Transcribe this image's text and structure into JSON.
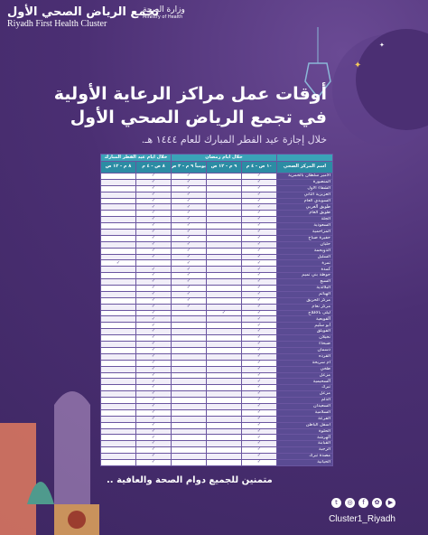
{
  "header": {
    "brand_ar": "تجمع الرياض الصحي الأول",
    "brand_en": "Riyadh First Health Cluster",
    "ministry_ar": "وزارة الصحة",
    "ministry_en": "Ministry of Health"
  },
  "title": {
    "line1": "أوقات عمل مراكز الرعاية الأولية",
    "line2": "في تجمع الرياض الصحي الأول",
    "subtitle": "خلال إجازة عيد الفطر المبارك للعام ١٤٤٤ هـ."
  },
  "table": {
    "group_ramadan": "خلال أيام رمضان",
    "group_eid": "خلال أيام عيد الفطر المبارك",
    "col_name": "اسم المركز الصحي",
    "col1": "١٠ ص - ٤ م",
    "col2": "٩ م - ١٢ ص",
    "col3": "يومياً ٩ م - ٣ ص",
    "col4": "٨ ص - ٤ م",
    "col5": "٨ م - ١٢ ص",
    "check": "✓",
    "rows": [
      {
        "name": "الأمير سلطان بالخمرية",
        "m": [
          1,
          0,
          1,
          1,
          0
        ]
      },
      {
        "name": "المنصورة",
        "m": [
          1,
          0,
          1,
          1,
          0
        ]
      },
      {
        "name": "الشفاء الأول",
        "m": [
          1,
          0,
          1,
          1,
          0
        ]
      },
      {
        "name": "العزيزية الثاني",
        "m": [
          1,
          0,
          1,
          1,
          0
        ]
      },
      {
        "name": "السويدي العام",
        "m": [
          1,
          0,
          1,
          1,
          0
        ]
      },
      {
        "name": "طويق الغربي",
        "m": [
          1,
          0,
          1,
          1,
          0
        ]
      },
      {
        "name": "طويق العام",
        "m": [
          1,
          0,
          1,
          1,
          0
        ]
      },
      {
        "name": "الجلة",
        "m": [
          1,
          0,
          1,
          1,
          0
        ]
      },
      {
        "name": "السعودية",
        "m": [
          1,
          0,
          1,
          1,
          0
        ]
      },
      {
        "name": "المزاحمية",
        "m": [
          1,
          0,
          1,
          1,
          0
        ]
      },
      {
        "name": "حفيرة صباح",
        "m": [
          1,
          0,
          1,
          1,
          0
        ]
      },
      {
        "name": "حليان",
        "m": [
          1,
          0,
          1,
          1,
          0
        ]
      },
      {
        "name": "الدويحمة",
        "m": [
          1,
          0,
          1,
          1,
          0
        ]
      },
      {
        "name": "السليل",
        "m": [
          1,
          0,
          1,
          1,
          0
        ]
      },
      {
        "name": "تمرة",
        "m": [
          1,
          0,
          1,
          0,
          1
        ]
      },
      {
        "name": "كمدة",
        "m": [
          1,
          0,
          1,
          1,
          0
        ]
      },
      {
        "name": "حوطة بني تميم",
        "m": [
          1,
          0,
          1,
          1,
          0
        ]
      },
      {
        "name": "السبع",
        "m": [
          1,
          0,
          1,
          1,
          0
        ]
      },
      {
        "name": "البلالدية",
        "m": [
          1,
          0,
          1,
          1,
          0
        ]
      },
      {
        "name": "الهياثم",
        "m": [
          1,
          0,
          1,
          1,
          0
        ]
      },
      {
        "name": "مركز الحريق",
        "m": [
          1,
          0,
          1,
          1,
          0
        ]
      },
      {
        "name": "مركز نعام",
        "m": [
          1,
          0,
          1,
          1,
          0
        ]
      },
      {
        "name": "ليلى بالأفلاج",
        "m": [
          1,
          1,
          0,
          1,
          0
        ]
      },
      {
        "name": "القويعية",
        "m": [
          1,
          0,
          0,
          1,
          0
        ]
      },
      {
        "name": "أبو سليم",
        "m": [
          1,
          0,
          0,
          1,
          0
        ]
      },
      {
        "name": "الفويلق",
        "m": [
          1,
          0,
          0,
          1,
          0
        ]
      },
      {
        "name": "نخيلان",
        "m": [
          1,
          0,
          0,
          1,
          0
        ]
      },
      {
        "name": "ضبحاء",
        "m": [
          1,
          0,
          0,
          1,
          0
        ]
      },
      {
        "name": "دسمان",
        "m": [
          1,
          0,
          0,
          1,
          0
        ]
      },
      {
        "name": "القرده",
        "m": [
          1,
          0,
          0,
          1,
          0
        ]
      },
      {
        "name": "أم سريحة",
        "m": [
          1,
          0,
          0,
          1,
          0
        ]
      },
      {
        "name": "طخي",
        "m": [
          1,
          0,
          0,
          1,
          0
        ]
      },
      {
        "name": "مزعل",
        "m": [
          1,
          0,
          0,
          1,
          0
        ]
      },
      {
        "name": "السحيمية",
        "m": [
          1,
          0,
          0,
          1,
          0
        ]
      },
      {
        "name": "تبرك",
        "m": [
          1,
          0,
          0,
          1,
          0
        ]
      },
      {
        "name": "مزعل",
        "m": [
          1,
          0,
          0,
          1,
          0
        ]
      },
      {
        "name": "الدلم",
        "m": [
          1,
          0,
          0,
          1,
          0
        ]
      },
      {
        "name": "السعيدان",
        "m": [
          1,
          0,
          0,
          1,
          0
        ]
      },
      {
        "name": "السلامية",
        "m": [
          1,
          0,
          0,
          1,
          0
        ]
      },
      {
        "name": "الفرعة",
        "m": [
          1,
          0,
          0,
          1,
          0
        ]
      },
      {
        "name": "أسفل الباطن",
        "m": [
          1,
          0,
          0,
          1,
          0
        ]
      },
      {
        "name": "الحلوة",
        "m": [
          1,
          0,
          0,
          1,
          0
        ]
      },
      {
        "name": "الهرشة",
        "m": [
          1,
          0,
          0,
          1,
          0
        ]
      },
      {
        "name": "القبابنة",
        "m": [
          1,
          0,
          0,
          1,
          0
        ]
      },
      {
        "name": "الرجبة",
        "m": [
          1,
          0,
          0,
          1,
          0
        ]
      },
      {
        "name": "مصدة تبرك",
        "m": [
          1,
          0,
          0,
          1,
          0
        ]
      },
      {
        "name": "الحيانية",
        "m": [
          1,
          0,
          0,
          1,
          0
        ]
      }
    ]
  },
  "closing": "متمنين للجميع دوام الصحة والعافية ..",
  "social": {
    "handle": "Cluster1_Riyadh",
    "icons": [
      "twitter-icon",
      "instagram-icon",
      "facebook-icon",
      "snapchat-icon",
      "youtube-icon"
    ],
    "glyphs": [
      "t",
      "◎",
      "f",
      "✿",
      "▶"
    ]
  },
  "colors": {
    "background": "#4a2f72",
    "header_teal": "#2c8ca4",
    "row_purple": "#5a4b93"
  }
}
